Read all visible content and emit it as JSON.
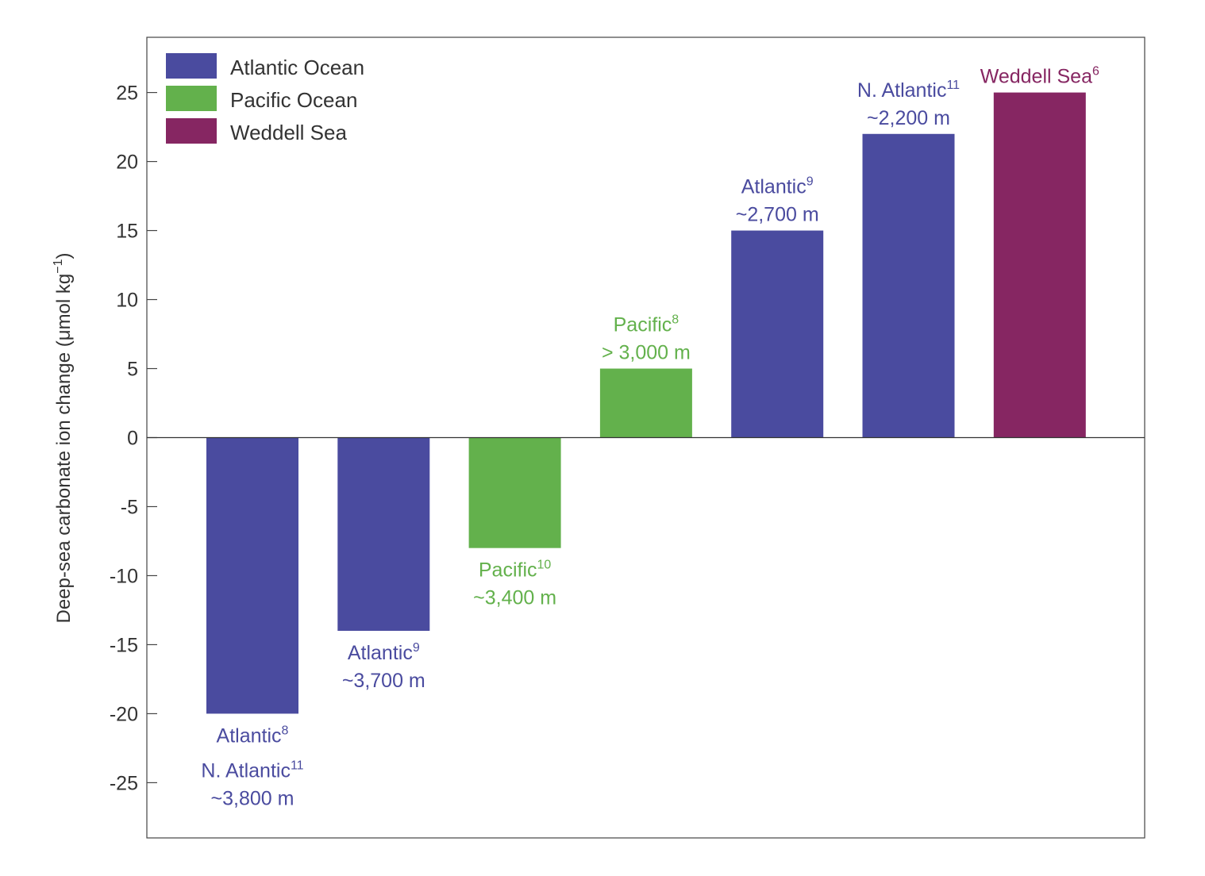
{
  "chart_data": {
    "type": "bar",
    "xlabel": "",
    "ylabel": "Deep-sea carbonate ion change (μmol kg",
    "ylabel_sup": "−1",
    "ylabel_suffix": ")",
    "ylim": [
      -29,
      29
    ],
    "yticks": [
      25,
      20,
      15,
      10,
      5,
      0,
      -5,
      -10,
      -15,
      -20,
      -25
    ],
    "ytick_labels": [
      "25",
      "20",
      "15",
      "10",
      "5",
      "0",
      "-5",
      "-10",
      "-15",
      "-20",
      "-25"
    ],
    "grid": false,
    "legend_position": "top-left",
    "colors": {
      "atlantic": "#4a4b9f",
      "pacific": "#63b14c",
      "weddell": "#862662"
    },
    "legend": [
      {
        "label": "Atlantic Ocean",
        "color_key": "atlantic"
      },
      {
        "label": "Pacific Ocean",
        "color_key": "pacific"
      },
      {
        "label": "Weddell Sea",
        "color_key": "weddell"
      }
    ],
    "bars": [
      {
        "value": -20,
        "color_key": "atlantic",
        "label_lines": [
          {
            "text": "Atlantic",
            "sup": "8"
          },
          {
            "text": "N. Atlantic",
            "sup": "11"
          },
          {
            "text": "~3,800 m",
            "sup": ""
          }
        ]
      },
      {
        "value": -14,
        "color_key": "atlantic",
        "label_lines": [
          {
            "text": "Atlantic",
            "sup": "9"
          },
          {
            "text": "~3,700 m",
            "sup": ""
          }
        ]
      },
      {
        "value": -8,
        "color_key": "pacific",
        "label_lines": [
          {
            "text": "Pacific",
            "sup": "10"
          },
          {
            "text": "~3,400 m",
            "sup": ""
          }
        ]
      },
      {
        "value": 5,
        "color_key": "pacific",
        "label_lines": [
          {
            "text": "Pacific",
            "sup": "8"
          },
          {
            "text": "> 3,000 m",
            "sup": ""
          }
        ]
      },
      {
        "value": 15,
        "color_key": "atlantic",
        "label_lines": [
          {
            "text": "Atlantic",
            "sup": "9"
          },
          {
            "text": "~2,700 m",
            "sup": ""
          }
        ]
      },
      {
        "value": 22,
        "color_key": "atlantic",
        "label_lines": [
          {
            "text": "N. Atlantic",
            "sup": "11"
          },
          {
            "text": "~2,200 m",
            "sup": ""
          }
        ]
      },
      {
        "value": 25,
        "color_key": "weddell",
        "label_lines": [
          {
            "text": "Weddell Sea",
            "sup": "6"
          }
        ]
      }
    ]
  }
}
